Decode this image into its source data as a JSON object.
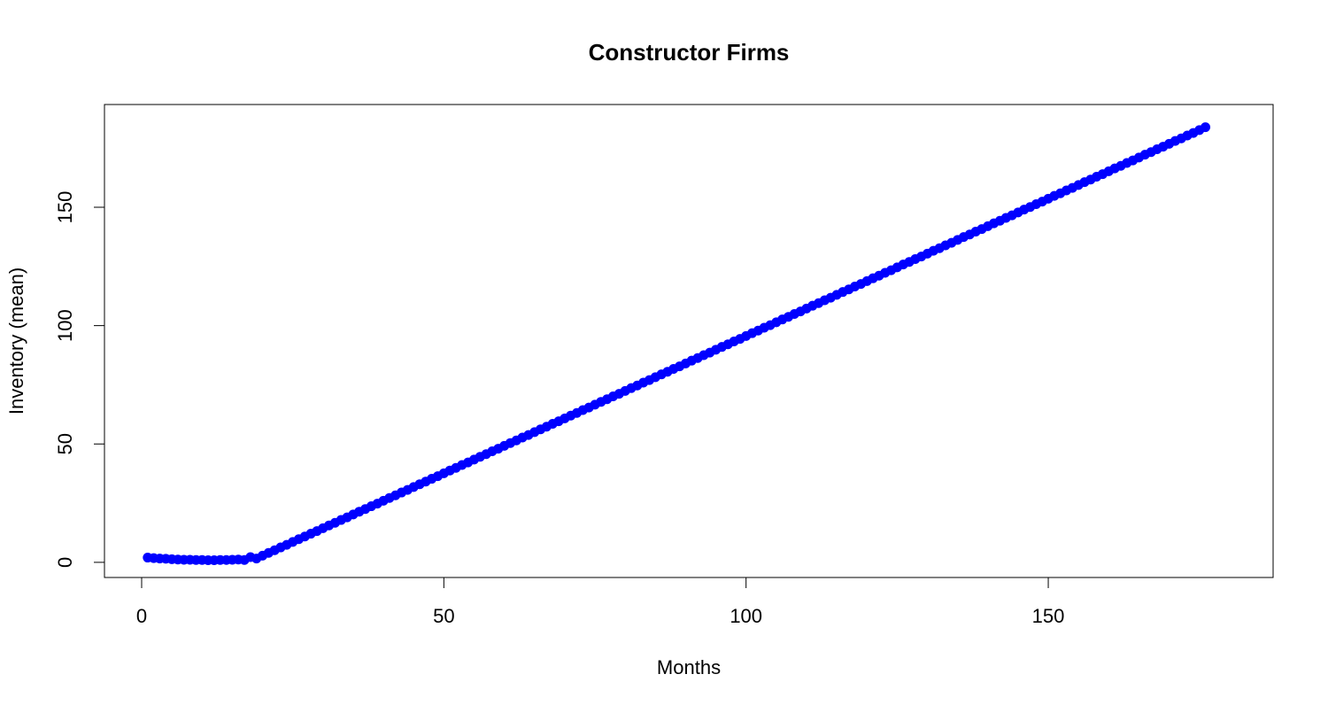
{
  "chart_data": {
    "type": "scatter",
    "title": "Constructor Firms",
    "x_label": "Months",
    "y_label": "Inventory (mean)",
    "x": [
      1,
      2,
      3,
      4,
      5,
      6,
      7,
      8,
      9,
      10,
      11,
      12,
      13,
      14,
      15,
      16,
      17,
      18,
      19,
      20,
      21,
      22,
      23,
      24,
      25,
      26,
      27,
      28,
      29,
      30,
      31,
      32,
      33,
      34,
      35,
      36,
      37,
      38,
      39,
      40,
      41,
      42,
      43,
      44,
      45,
      46,
      47,
      48,
      49,
      50,
      51,
      52,
      53,
      54,
      55,
      56,
      57,
      58,
      59,
      60,
      61,
      62,
      63,
      64,
      65,
      66,
      67,
      68,
      69,
      70,
      71,
      72,
      73,
      74,
      75,
      76,
      77,
      78,
      79,
      80,
      81,
      82,
      83,
      84,
      85,
      86,
      87,
      88,
      89,
      90,
      91,
      92,
      93,
      94,
      95,
      96,
      97,
      98,
      99,
      100,
      101,
      102,
      103,
      104,
      105,
      106,
      107,
      108,
      109,
      110,
      111,
      112,
      113,
      114,
      115,
      116,
      117,
      118,
      119,
      120,
      121,
      122,
      123,
      124,
      125,
      126,
      127,
      128,
      129,
      130,
      131,
      132,
      133,
      134,
      135,
      136,
      137,
      138,
      139,
      140,
      141,
      142,
      143,
      144,
      145,
      146,
      147,
      148,
      149,
      150,
      151,
      152,
      153,
      154,
      155,
      156,
      157,
      158,
      159,
      160,
      161,
      162,
      163,
      164,
      165,
      166,
      167,
      168,
      169,
      170,
      171,
      172,
      173,
      174,
      175,
      176
    ],
    "values": [
      2.0,
      1.8,
      1.6,
      1.5,
      1.3,
      1.2,
      1.1,
      1.1,
      1.0,
      1.0,
      0.9,
      0.9,
      1.0,
      1.0,
      1.1,
      1.2,
      1.0,
      2.2,
      1.6,
      2.8,
      4.0,
      5.1,
      6.3,
      7.4,
      8.6,
      9.8,
      10.9,
      12.1,
      13.2,
      14.4,
      15.6,
      16.7,
      17.9,
      19.0,
      20.2,
      21.4,
      22.5,
      23.7,
      24.8,
      26.0,
      27.2,
      28.3,
      29.5,
      30.6,
      31.8,
      33.0,
      34.1,
      35.3,
      36.4,
      37.6,
      38.8,
      39.9,
      41.1,
      42.2,
      43.4,
      44.6,
      45.7,
      46.9,
      48.0,
      49.2,
      50.4,
      51.5,
      52.7,
      53.8,
      55.0,
      56.2,
      57.3,
      58.5,
      59.6,
      60.8,
      62.0,
      63.1,
      64.3,
      65.4,
      66.6,
      67.8,
      68.9,
      70.1,
      71.2,
      72.4,
      73.6,
      74.7,
      75.9,
      77.0,
      78.2,
      79.4,
      80.5,
      81.7,
      82.8,
      84.0,
      85.2,
      86.3,
      87.5,
      88.6,
      89.8,
      91.0,
      92.1,
      93.3,
      94.4,
      95.6,
      96.8,
      97.9,
      99.1,
      100.2,
      101.4,
      102.6,
      103.7,
      104.9,
      106.0,
      107.2,
      108.4,
      109.5,
      110.7,
      111.8,
      113.0,
      114.2,
      115.3,
      116.5,
      117.6,
      118.8,
      120.0,
      121.1,
      122.3,
      123.4,
      124.6,
      125.8,
      126.9,
      128.1,
      129.2,
      130.4,
      131.6,
      132.7,
      133.9,
      135.0,
      136.2,
      137.4,
      138.5,
      139.7,
      140.8,
      142.0,
      143.2,
      144.3,
      145.5,
      146.6,
      147.8,
      149.0,
      150.1,
      151.3,
      152.4,
      153.6,
      154.8,
      155.9,
      157.1,
      158.2,
      159.4,
      160.6,
      161.7,
      162.9,
      164.0,
      165.2,
      166.4,
      167.5,
      168.7,
      169.8,
      171.0,
      172.2,
      173.3,
      174.5,
      175.6,
      176.8,
      178.0,
      179.1,
      180.3,
      181.4,
      182.6,
      183.8
    ],
    "color": "#0000ff",
    "xlim": [
      -6.15,
      187.2
    ],
    "xticks": [
      0,
      50,
      100,
      150
    ],
    "ylim": [
      -6.4,
      193.4
    ],
    "yticks": [
      0,
      50,
      100,
      150
    ]
  }
}
